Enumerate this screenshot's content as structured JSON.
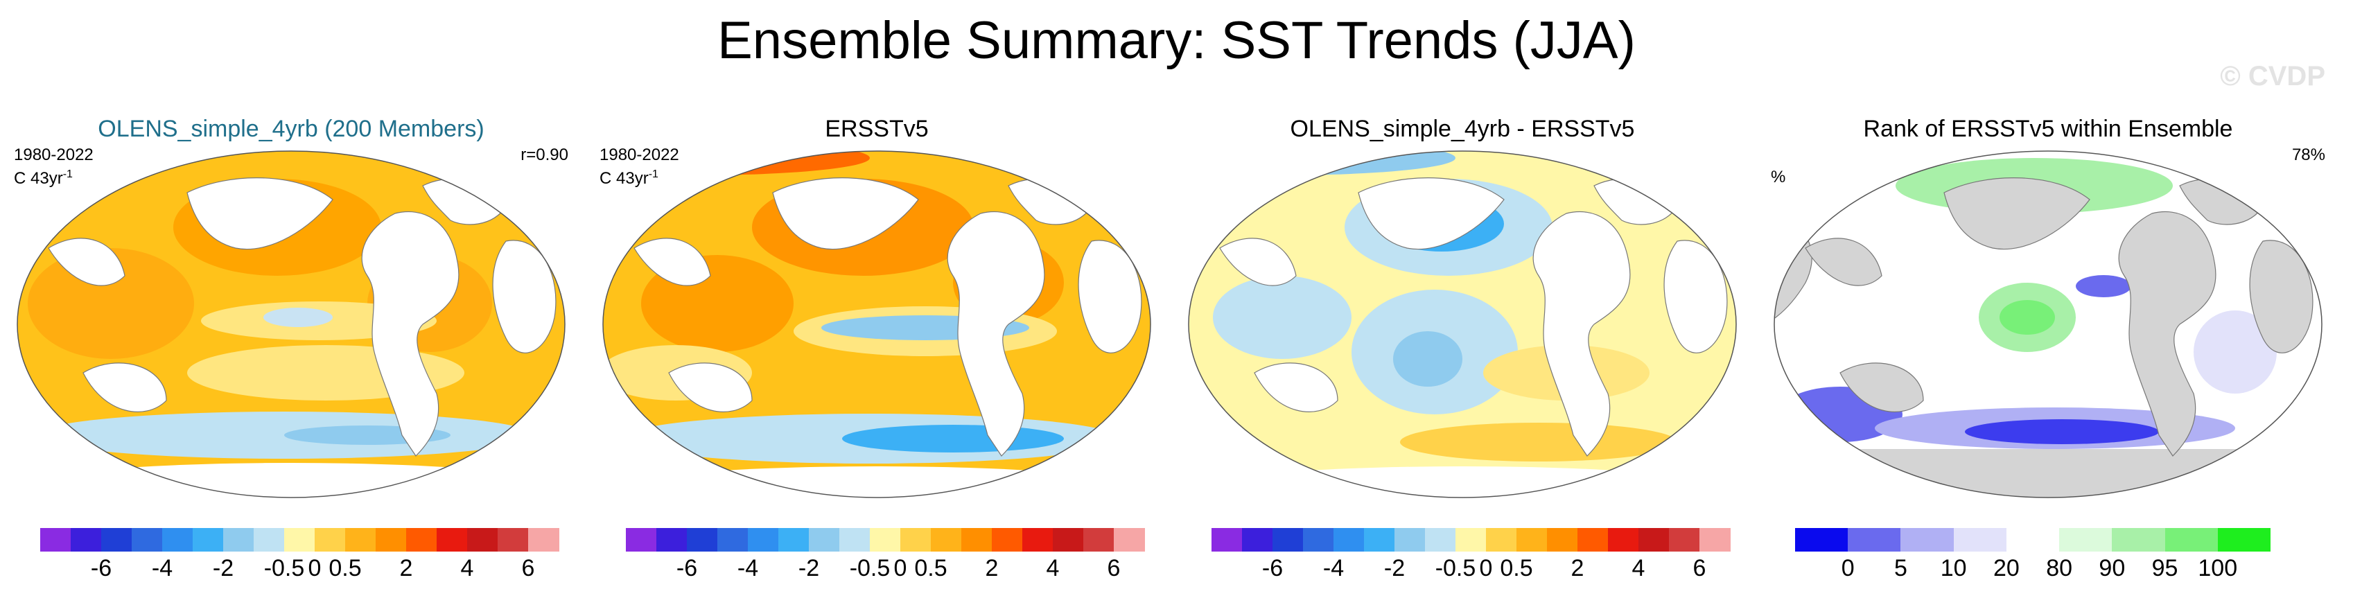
{
  "title": "Ensemble Summary: SST Trends (JJA)",
  "watermark": "© CVDP",
  "panels": [
    {
      "title": "OLENS_simple_4yrb (200 Members)",
      "period": "1980-2022",
      "units": "C 43yr",
      "units_sup": "-1",
      "right_label": "r=0.90",
      "colorbar": "trend"
    },
    {
      "title": "ERSSTv5",
      "period": "1980-2022",
      "units": "C 43yr",
      "units_sup": "-1",
      "right_label": "",
      "colorbar": "trend"
    },
    {
      "title": "OLENS_simple_4yrb - ERSSTv5",
      "period": "",
      "units": "",
      "units_sup": "",
      "right_label": "",
      "colorbar": "trend"
    },
    {
      "title": "Rank of ERSSTv5 within Ensemble",
      "period": "",
      "units": "%",
      "units_sup": "",
      "right_label": "78%",
      "colorbar": "rank"
    }
  ],
  "colorbars": {
    "trend": {
      "colors": [
        "#8a2be2",
        "#3c1fdc",
        "#1f3fd6",
        "#2f6ae0",
        "#2f8ff0",
        "#3cb0f5",
        "#8fcbee",
        "#bfe2f3",
        "#fff7a8",
        "#ffd24a",
        "#ffb31a",
        "#ff8f00",
        "#ff5a00",
        "#e81a0f",
        "#c81919",
        "#d23c3c",
        "#f6a6a6"
      ],
      "labels": [
        {
          "text": "-6",
          "boundary": 2
        },
        {
          "text": "-4",
          "boundary": 4
        },
        {
          "text": "-2",
          "boundary": 6
        },
        {
          "text": "-0.5",
          "boundary": 8
        },
        {
          "text": "0",
          "boundary": 9
        },
        {
          "text": "0.5",
          "boundary": 10
        },
        {
          "text": "2",
          "boundary": 12
        },
        {
          "text": "4",
          "boundary": 14
        },
        {
          "text": "6",
          "boundary": 16
        }
      ]
    },
    "rank": {
      "colors": [
        "#0a0aee",
        "#6a6aee",
        "#b0b0f4",
        "#e2e2fa",
        "#ffffff",
        "#dcfadc",
        "#a8f0a8",
        "#78f078",
        "#1eee1e"
      ],
      "labels": [
        {
          "text": "0",
          "boundary": 1
        },
        {
          "text": "5",
          "boundary": 2
        },
        {
          "text": "10",
          "boundary": 3
        },
        {
          "text": "20",
          "boundary": 4
        },
        {
          "text": "80",
          "boundary": 5
        },
        {
          "text": "90",
          "boundary": 6
        },
        {
          "text": "95",
          "boundary": 7
        },
        {
          "text": "100",
          "boundary": 8
        }
      ]
    }
  }
}
